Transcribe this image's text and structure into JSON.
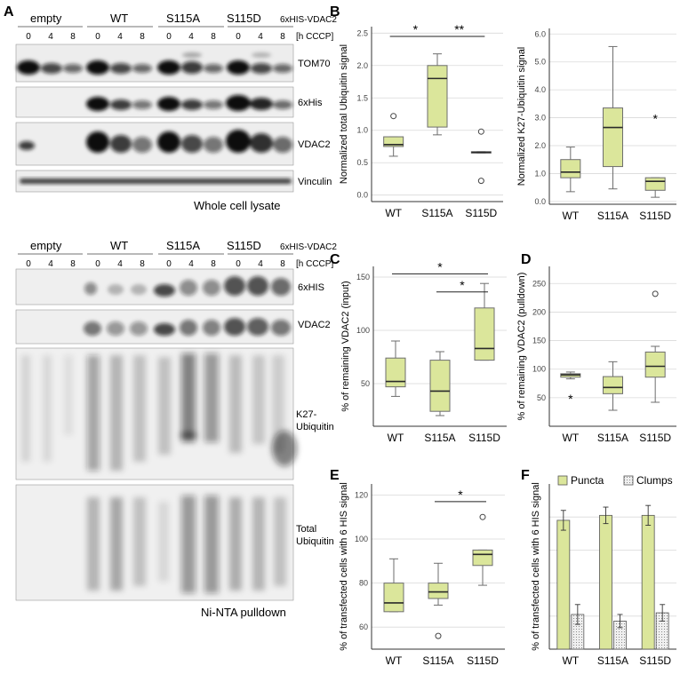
{
  "panel_letters": [
    "A",
    "B",
    "C",
    "D",
    "E",
    "F"
  ],
  "blots": {
    "construct_label": "6xHIS-VDAC2",
    "time_unit": "[h CCCP]",
    "groups": [
      "empty",
      "WT",
      "S115A",
      "S115D"
    ],
    "time_points": [
      "0",
      "4",
      "8"
    ],
    "whole_cell": {
      "caption": "Whole cell lysate",
      "bands": [
        "TOM70",
        "6xHis",
        "VDAC2",
        "Vinculin"
      ]
    },
    "pulldown": {
      "caption": "Ni-NTA pulldown",
      "bands": [
        "6xHIS",
        "VDAC2",
        "K27-\nUbiquitin",
        "Total\nUbiquitin"
      ]
    }
  },
  "chart_data": [
    {
      "panel": "B",
      "type": "box",
      "ylabel": "Normalized total Ubiquitin signal",
      "categories": [
        "WT",
        "S115A",
        "S115D"
      ],
      "ylim": [
        -0.1,
        2.6
      ],
      "yticks": [
        0.0,
        0.5,
        1.0,
        1.5,
        2.0,
        2.5
      ],
      "tick_labels": [
        "0.0",
        "0.5",
        "1.0",
        "1.5",
        "2.0",
        "2.5"
      ],
      "grid": true,
      "boxes": [
        {
          "min": 0.6,
          "q1": 0.75,
          "median": 0.78,
          "q3": 0.9,
          "max": 0.9,
          "outliers": [
            1.22
          ]
        },
        {
          "min": 0.93,
          "q1": 1.05,
          "median": 1.8,
          "q3": 2.0,
          "max": 2.18,
          "outliers": []
        },
        {
          "min": 0.65,
          "q1": 0.65,
          "median": 0.66,
          "q3": 0.67,
          "max": 0.67,
          "outliers": [
            0.98,
            0.22
          ]
        }
      ],
      "significance": [
        {
          "from": 0,
          "to": 1,
          "label": "*",
          "y": 2.45
        },
        {
          "from": 1,
          "to": 2,
          "label": "**",
          "y": 2.45
        }
      ]
    },
    {
      "panel": "B2",
      "type": "box",
      "ylabel": "Normalized K27-Ubiquitin signal",
      "categories": [
        "WT",
        "S115A",
        "S115D"
      ],
      "ylim": [
        -0.1,
        6.2
      ],
      "yticks": [
        0,
        1,
        2,
        3,
        4,
        5,
        6
      ],
      "tick_labels": [
        "0.0",
        "1.0",
        "2.0",
        "3.0",
        "4.0",
        "5.0",
        "6.0"
      ],
      "grid": true,
      "boxes": [
        {
          "min": 0.35,
          "q1": 0.85,
          "median": 1.05,
          "q3": 1.5,
          "max": 1.95,
          "outliers": []
        },
        {
          "min": 0.45,
          "q1": 1.25,
          "median": 2.65,
          "q3": 3.35,
          "max": 5.55,
          "outliers": []
        },
        {
          "min": 0.15,
          "q1": 0.4,
          "median": 0.72,
          "q3": 0.85,
          "max": 0.85,
          "outliers": []
        }
      ],
      "marker_labels": [
        {
          "cat": 2,
          "y": 3.0,
          "label": "*"
        }
      ]
    },
    {
      "panel": "C",
      "type": "box",
      "ylabel": "% of remaining VDAC2 (input)",
      "categories": [
        "WT",
        "S115A",
        "S115D"
      ],
      "ylim": [
        10,
        160
      ],
      "yticks": [
        50,
        100,
        150
      ],
      "tick_labels": [
        "50",
        "100",
        "150"
      ],
      "grid": true,
      "boxes": [
        {
          "min": 38,
          "q1": 47,
          "median": 52,
          "q3": 74,
          "max": 90,
          "outliers": []
        },
        {
          "min": 20,
          "q1": 24,
          "median": 43,
          "q3": 72,
          "max": 80,
          "outliers": []
        },
        {
          "min": 72,
          "q1": 72,
          "median": 83,
          "q3": 121,
          "max": 144,
          "outliers": []
        }
      ],
      "significance": [
        {
          "from": 0,
          "to": 2,
          "label": "*",
          "y": 153
        },
        {
          "from": 1,
          "to": 2,
          "label": "*",
          "y": 136
        }
      ]
    },
    {
      "panel": "D",
      "type": "box",
      "ylabel": "% of remaining VDAC2 (pulldown)",
      "categories": [
        "WT",
        "S115A",
        "S115D"
      ],
      "ylim": [
        0,
        280
      ],
      "yticks": [
        50,
        100,
        150,
        200,
        250
      ],
      "tick_labels": [
        "50",
        "100",
        "150",
        "200",
        "250"
      ],
      "grid": true,
      "boxes": [
        {
          "min": 83,
          "q1": 86,
          "median": 90,
          "q3": 92,
          "max": 95,
          "outliers": []
        },
        {
          "min": 28,
          "q1": 57,
          "median": 68,
          "q3": 87,
          "max": 113,
          "outliers": []
        },
        {
          "min": 42,
          "q1": 86,
          "median": 105,
          "q3": 130,
          "max": 140,
          "outliers": [
            232
          ]
        }
      ],
      "marker_labels": [
        {
          "cat": 0,
          "y": 50,
          "label": "*"
        }
      ]
    },
    {
      "panel": "E",
      "type": "box",
      "ylabel": "% of transfected cells with 6 HIS signal",
      "categories": [
        "WT",
        "S115A",
        "S115D"
      ],
      "ylim": [
        50,
        125
      ],
      "yticks": [
        60,
        80,
        100,
        120
      ],
      "tick_labels": [
        "60",
        "80",
        "100",
        "120"
      ],
      "grid": true,
      "boxes": [
        {
          "min": 67,
          "q1": 67,
          "median": 71,
          "q3": 80,
          "max": 91,
          "outliers": []
        },
        {
          "min": 70,
          "q1": 73,
          "median": 76,
          "q3": 80,
          "max": 89,
          "outliers": [
            56
          ]
        },
        {
          "min": 79,
          "q1": 88,
          "median": 93,
          "q3": 95,
          "max": 95,
          "outliers": [
            110
          ]
        }
      ],
      "significance": [
        {
          "from": 1,
          "to": 2,
          "label": "*",
          "y": 117
        }
      ]
    },
    {
      "panel": "F",
      "type": "bar",
      "ylabel": "% of transfected cells with 6 HIS signal",
      "categories": [
        "WT",
        "S115A",
        "S115D"
      ],
      "ylim": [
        0,
        100
      ],
      "yticks": [
        20,
        40,
        60,
        80
      ],
      "tick_labels": [
        "",
        "",
        "",
        ""
      ],
      "grid": true,
      "legend": "top",
      "series": [
        {
          "name": "Puncta",
          "values": [
            78,
            81,
            81
          ],
          "errors": [
            6,
            5,
            6
          ]
        },
        {
          "name": "Clumps",
          "values": [
            21,
            17,
            22
          ],
          "errors": [
            6,
            4,
            5
          ]
        }
      ]
    }
  ],
  "colors": {
    "box_fill": "#dbe69b",
    "box_stroke": "#6e6e6e",
    "median": "#2a2a2a",
    "grid": "#d9d9d9",
    "clumps_fill": "#e9e9e9"
  }
}
